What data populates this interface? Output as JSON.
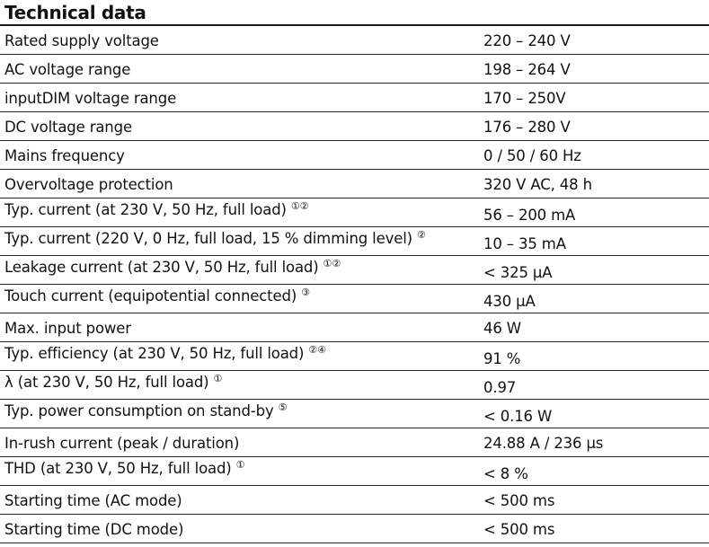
{
  "title": "Technical data",
  "rows": [
    {
      "label": "Rated supply voltage",
      "note": "",
      "value": "220 – 240 V",
      "raised": false
    },
    {
      "label": "AC voltage range",
      "note": "",
      "value": "198 – 264 V",
      "raised": false
    },
    {
      "label": "inputDIM voltage range",
      "note": "",
      "value": "170 – 250V",
      "raised": false
    },
    {
      "label": "DC voltage range",
      "note": "",
      "value": "176 – 280 V",
      "raised": false
    },
    {
      "label": "Mains frequency",
      "note": "",
      "value": "0 / 50 / 60 Hz",
      "raised": false
    },
    {
      "label": "Overvoltage protection",
      "note": "",
      "value": "320 V AC, 48 h",
      "raised": false
    },
    {
      "label": "Typ. current (at 230 V, 50 Hz, full load)",
      "note": "①②",
      "value": "56 – 200 mA",
      "raised": true
    },
    {
      "label": "Typ. current (220 V, 0 Hz, full load, 15 % dimming level)",
      "note": "②",
      "value": "10 – 35 mA",
      "raised": true
    },
    {
      "label": "Leakage current (at 230 V, 50 Hz, full load)",
      "note": "①②",
      "value": "< 325 µA",
      "raised": true
    },
    {
      "label": "Touch current (equipotential connected)",
      "note": "③",
      "value": "430 µA",
      "raised": true
    },
    {
      "label": "Max. input power",
      "note": "",
      "value": "46 W",
      "raised": false
    },
    {
      "label": "Typ. efficiency (at 230 V, 50 Hz, full load)",
      "note": "②④",
      "value": "91 %",
      "raised": true
    },
    {
      "label": "λ (at 230 V, 50 Hz, full load)",
      "note": "①",
      "value": "0.97",
      "raised": true
    },
    {
      "label": "Typ. power consumption on stand-by",
      "note": "⑤",
      "value": "< 0.16 W",
      "raised": true
    },
    {
      "label": "In-rush current (peak / duration)",
      "note": "",
      "value": "24.88 A / 236 µs",
      "raised": false
    },
    {
      "label": "THD (at 230 V, 50 Hz, full load)",
      "note": "①",
      "value": "< 8 %",
      "raised": true
    },
    {
      "label": "Starting time (AC mode)",
      "note": "",
      "value": "< 500 ms",
      "raised": false
    },
    {
      "label": "Starting time (DC mode)",
      "note": "",
      "value": "< 500 ms",
      "raised": false
    }
  ]
}
